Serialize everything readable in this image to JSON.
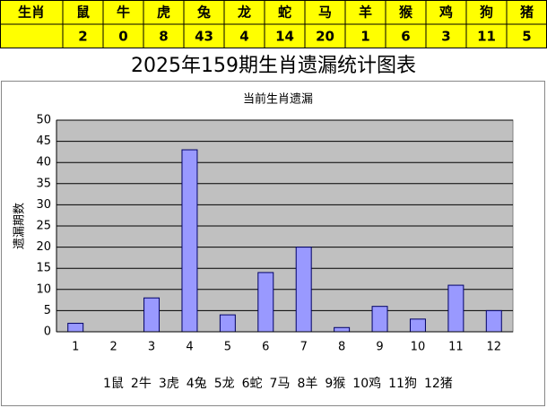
{
  "table": {
    "header": "生肖",
    "animals": [
      "鼠",
      "牛",
      "虎",
      "兔",
      "龙",
      "蛇",
      "马",
      "羊",
      "猴",
      "鸡",
      "狗",
      "猪"
    ]
  },
  "title": "2025年159期生肖遗漏统计图表",
  "chart_data": {
    "type": "bar",
    "title": "当前生肖遗漏",
    "y_label": "遗漏期数",
    "categories": [
      "1",
      "2",
      "3",
      "4",
      "5",
      "6",
      "7",
      "8",
      "9",
      "10",
      "11",
      "12"
    ],
    "values": [
      2,
      0,
      8,
      43,
      4,
      14,
      20,
      1,
      6,
      3,
      11,
      5
    ],
    "color": "#9999ff",
    "ylim": [
      0,
      50
    ],
    "yticks": [
      0,
      5,
      10,
      15,
      20,
      25,
      30,
      35,
      40,
      45,
      50
    ],
    "grid": true,
    "category_labels": [
      "1鼠",
      "2牛",
      "3虎",
      "4兔",
      "5龙",
      "6蛇",
      "7马",
      "8羊",
      "9猴",
      "10鸡",
      "11狗",
      "12猪"
    ]
  }
}
